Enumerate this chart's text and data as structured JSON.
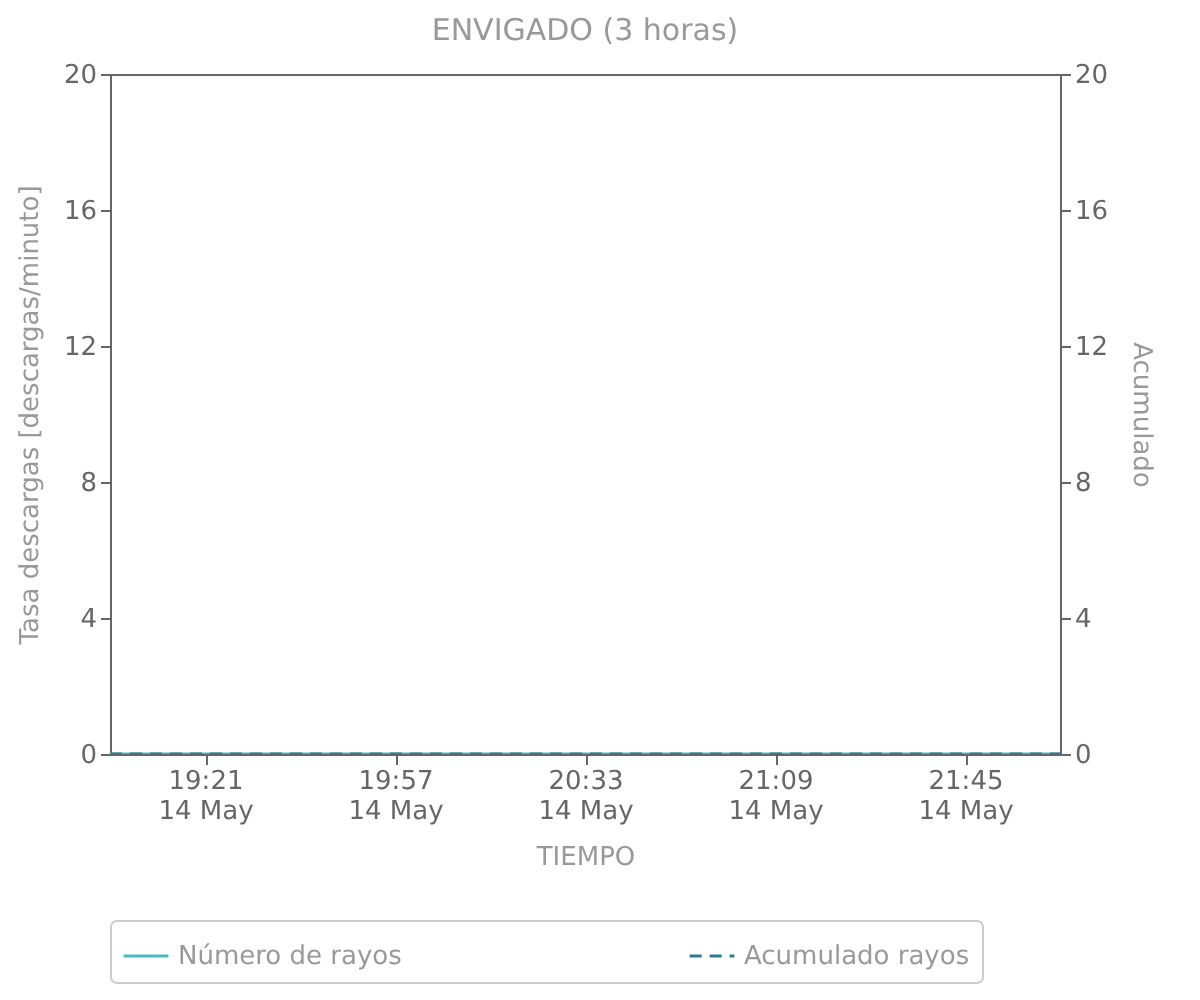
{
  "chart_data": {
    "type": "line",
    "title": "ENVIGADO (3 horas)",
    "xlabel": "TIEMPO",
    "ylabel": "Tasa descargas [descargas/minuto]",
    "y2label": "Acumulado",
    "categories": [
      null,
      "19:21\n14 May",
      null,
      "19:57\n14 May",
      null,
      "20:33\n14 May",
      null,
      "21:09\n14 May",
      null,
      "21:45\n14 May",
      null
    ],
    "ylim": [
      0,
      20
    ],
    "yticks": [
      0,
      4,
      8,
      12,
      16,
      20
    ],
    "y2lim": [
      0,
      20
    ],
    "y2ticks": [
      0,
      4,
      8,
      12,
      16,
      20
    ],
    "series": [
      {
        "name": "Número de rayos",
        "color": "#4bb8c4",
        "line_style": "solid",
        "values": [
          0,
          0,
          0,
          0,
          0,
          0,
          0,
          0,
          0,
          0,
          0
        ]
      },
      {
        "name": "Acumulado rayos",
        "color": "#2e7a94",
        "line_style": "dashed",
        "axis": "y2",
        "values": [
          0,
          0,
          0,
          0,
          0,
          0,
          0,
          0,
          0,
          0,
          0
        ]
      }
    ],
    "grid": false,
    "legend": "bottom"
  }
}
